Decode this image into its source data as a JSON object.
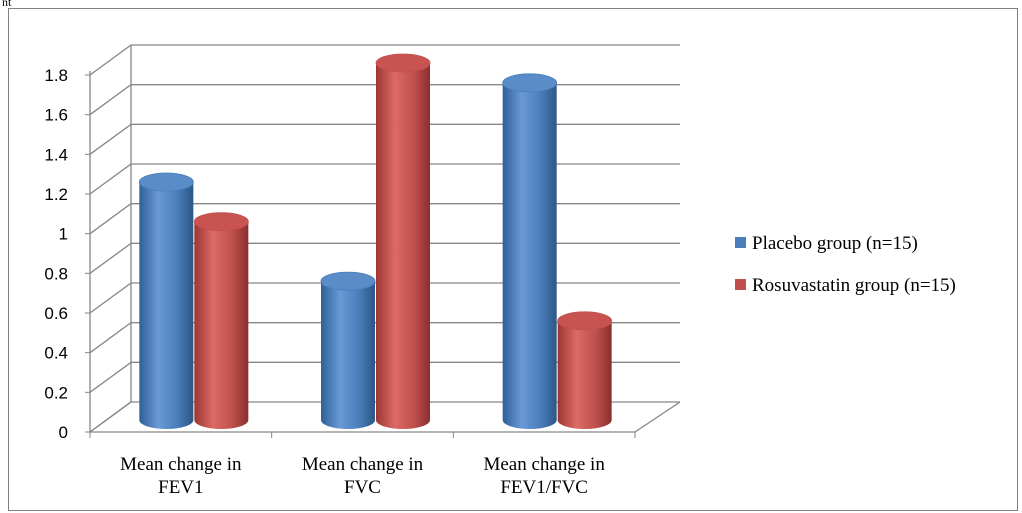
{
  "top_fragment": "nt",
  "colors": {
    "placebo": "#4a7ebb",
    "rosuvastatin": "#c0504d",
    "gridline": "#868686",
    "frame": "#808080"
  },
  "chart_data": {
    "type": "bar",
    "title": "",
    "xlabel": "",
    "ylabel": "",
    "ylim": [
      0,
      1.8
    ],
    "ytick_step": 0.2,
    "yticks": [
      "0",
      "0.2",
      "0.4",
      "0.6",
      "0.8",
      "1",
      "1.2",
      "1.4",
      "1.6",
      "1.8"
    ],
    "categories": [
      [
        "Mean change in",
        "FEV1"
      ],
      [
        "Mean change in",
        "FVC"
      ],
      [
        "Mean change in",
        "FEV1/FVC"
      ]
    ],
    "series": [
      {
        "name": "Placebo group (n=15)",
        "values": [
          1.2,
          0.7,
          1.7
        ]
      },
      {
        "name": "Rosuvastatin group (n=15)",
        "values": [
          1.0,
          1.8,
          0.5
        ]
      }
    ],
    "grid": true,
    "legend": "right",
    "style": "3d-cylinder"
  }
}
